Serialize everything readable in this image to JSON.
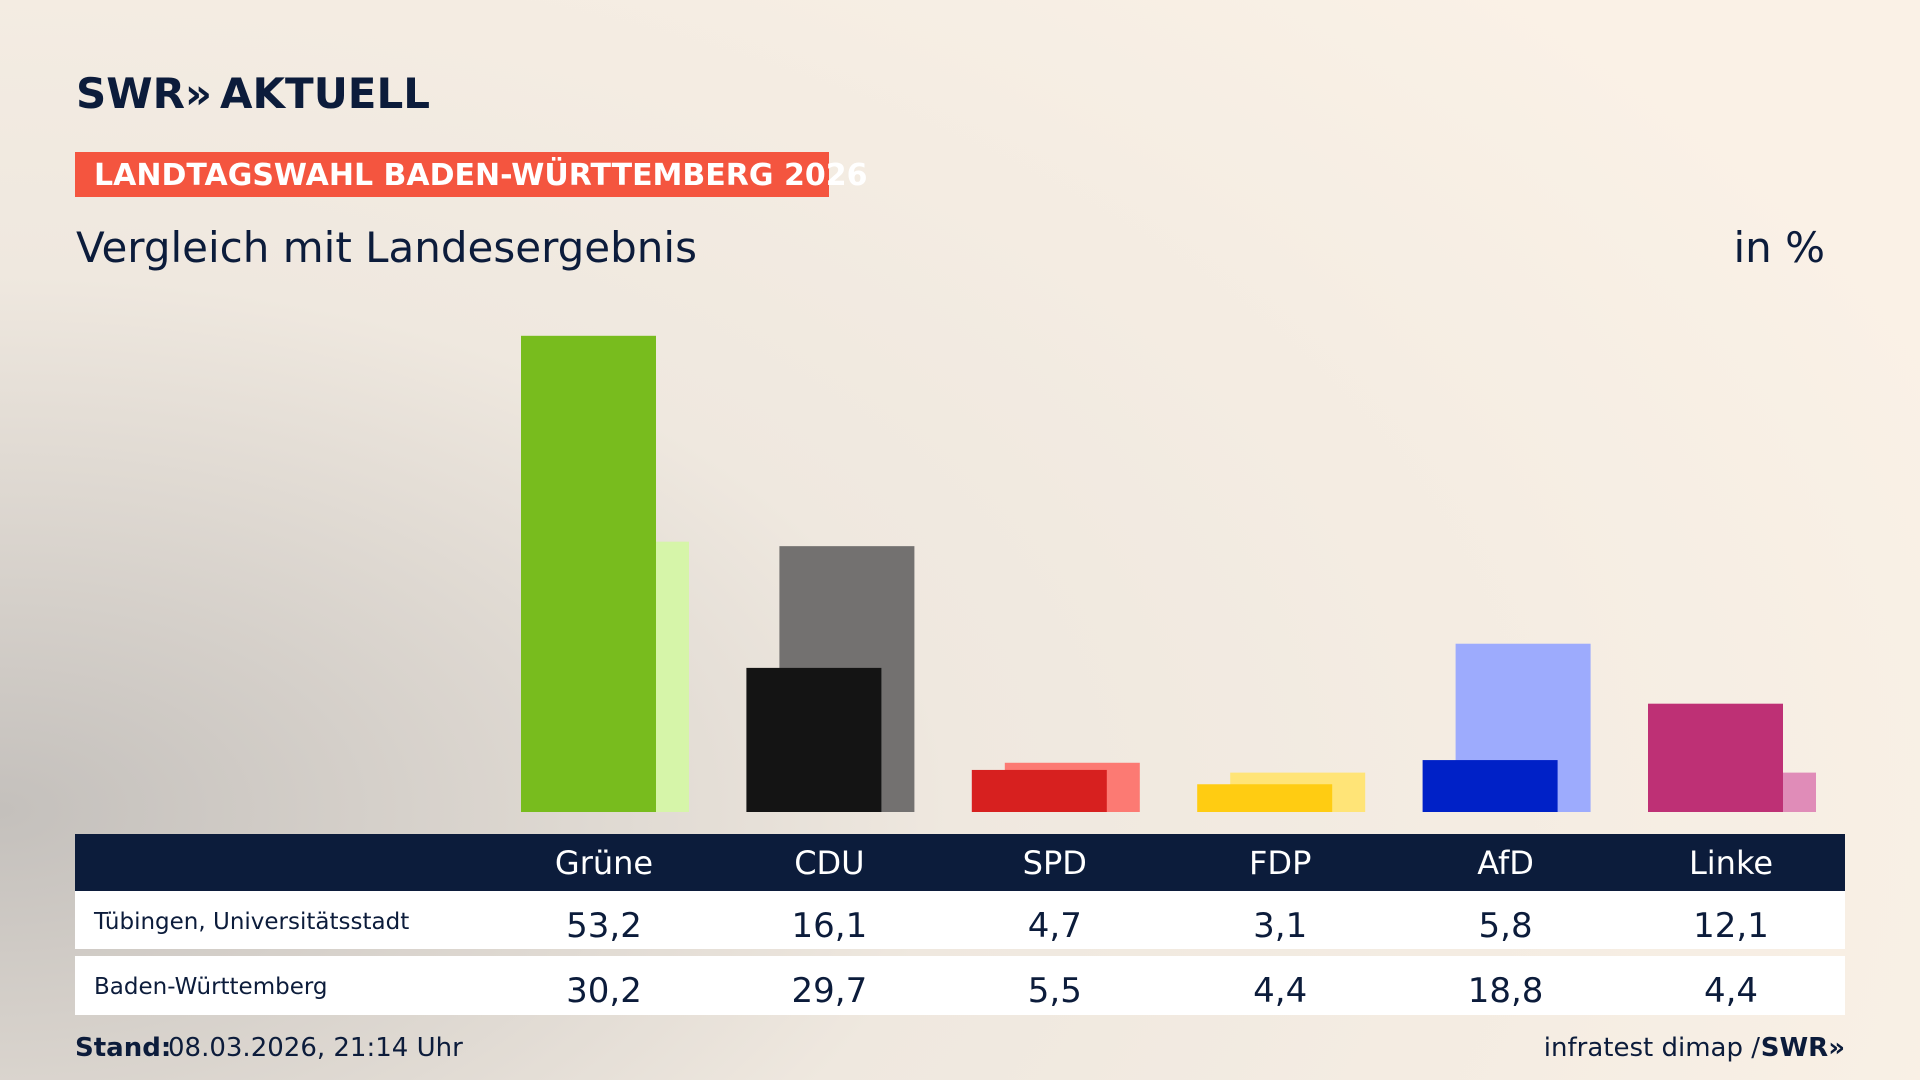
{
  "chart_data": {
    "type": "bar",
    "logo": {
      "brand": "SWR»",
      "name": "AKTUELL"
    },
    "banner": "LANDTAGSWAHL BADEN-WÜRTTEMBERG 2026",
    "title": "Vergleich mit Landesergebnis",
    "unit_label": "in %",
    "categories": [
      "Grüne",
      "CDU",
      "SPD",
      "FDP",
      "AfD",
      "Linke"
    ],
    "series": [
      {
        "name": "Tübingen, Universitätsstadt",
        "colors": [
          "#78bc1e",
          "#141414",
          "#d7201f",
          "#ffcc12",
          "#0021c7",
          "#be3075"
        ],
        "values": [
          53.2,
          16.1,
          4.7,
          3.1,
          5.8,
          12.1
        ],
        "value_labels": [
          "53,2",
          "16,1",
          "4,7",
          "3,1",
          "5,8",
          "12,1"
        ]
      },
      {
        "name": "Baden-Württemberg",
        "colors": [
          "#d6f5a9",
          "#737170",
          "#fc7a73",
          "#ffe477",
          "#9dabfd",
          "#e08cb8"
        ],
        "values": [
          30.2,
          29.7,
          5.5,
          4.4,
          18.8,
          4.4
        ],
        "value_labels": [
          "30,2",
          "29,7",
          "5,5",
          "4,4",
          "18,8",
          "4,4"
        ]
      }
    ],
    "footer": {
      "stand_label": "Stand:",
      "stand": "08.03.2026, 21:14 Uhr",
      "source": "infratest dimap /",
      "source_brand": "SWR»"
    }
  }
}
